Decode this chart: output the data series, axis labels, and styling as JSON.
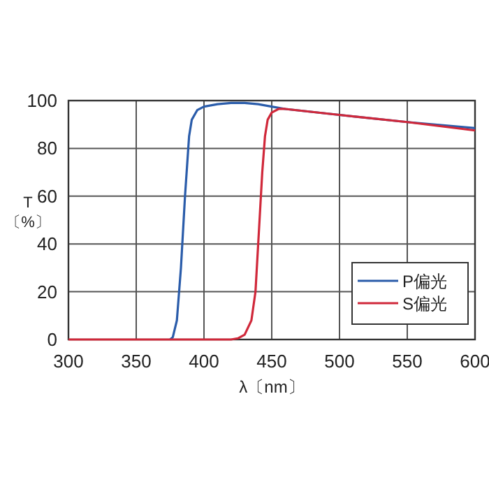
{
  "chart_data": {
    "type": "line",
    "xlabel": "λ〔nm〕",
    "ylabel": "T\n〔%〕",
    "xlim": [
      300,
      600
    ],
    "xticks": [
      300,
      350,
      400,
      450,
      500,
      550,
      600
    ],
    "ylim": [
      0,
      100
    ],
    "yticks": [
      0,
      20,
      40,
      60,
      80,
      100
    ],
    "grid": true,
    "legend": "bottom right",
    "marker": "none",
    "line_style": "solid",
    "series": [
      {
        "name": "P偏光",
        "color": "#2a5caa",
        "x": [
          375,
          377,
          380,
          383,
          386,
          389,
          391,
          395,
          400,
          410,
          420,
          430,
          440,
          450,
          460,
          500,
          550,
          600
        ],
        "values": [
          0,
          1,
          8,
          30,
          60,
          85,
          92,
          96,
          97.5,
          98.5,
          99,
          99,
          98.5,
          97.5,
          96.5,
          94,
          91,
          88.5
        ]
      },
      {
        "name": "S偏光",
        "color": "#d0283a",
        "x": [
          300,
          350,
          400,
          420,
          425,
          430,
          435,
          438,
          441,
          443,
          445,
          447,
          450,
          455,
          460,
          500,
          550,
          600
        ],
        "values": [
          0,
          0,
          0,
          0,
          0.5,
          2,
          8,
          20,
          50,
          70,
          85,
          92,
          95,
          96.5,
          96.5,
          94,
          91,
          87.5
        ]
      }
    ]
  }
}
